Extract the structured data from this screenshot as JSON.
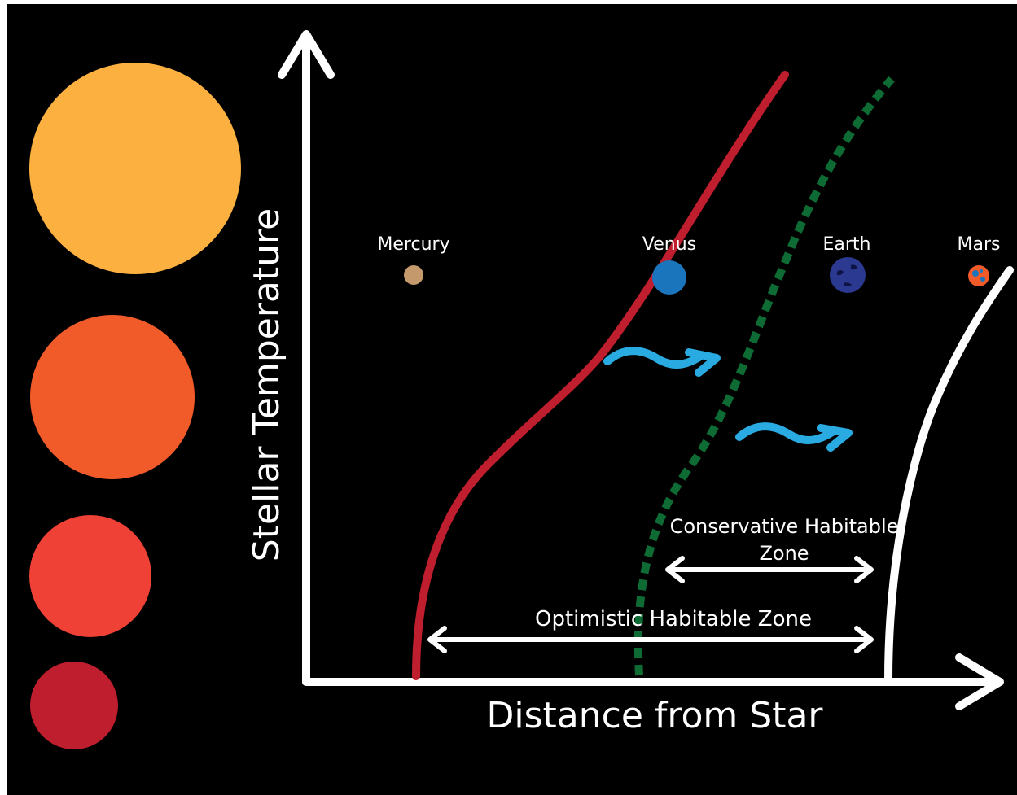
{
  "axes": {
    "y_label": "Stellar Temperature",
    "x_label": "Distance from Star"
  },
  "planets": [
    {
      "name": "Mercury",
      "color": "#C49A6C"
    },
    {
      "name": "Venus",
      "color": "#1B75BC"
    },
    {
      "name": "Earth",
      "color": "#2B3990"
    },
    {
      "name": "Mars",
      "color": "#F15A29"
    }
  ],
  "zones": {
    "conservative_line1": "Conservative Habitable",
    "conservative_line2": "Zone",
    "optimistic": "Optimistic Habitable Zone"
  },
  "colors": {
    "background": "#000000",
    "axis": "#FFFFFF",
    "inner_edge_optimistic": "#BE1E2D",
    "inner_edge_conservative": "#0E6B34",
    "outer_edge": "#FFFFFF",
    "water_flow": "#29ABE2",
    "star_large": "#FBB040",
    "star_medium": "#F15A29",
    "star_small": "#EF4136",
    "star_smallest": "#BE1E2D"
  }
}
